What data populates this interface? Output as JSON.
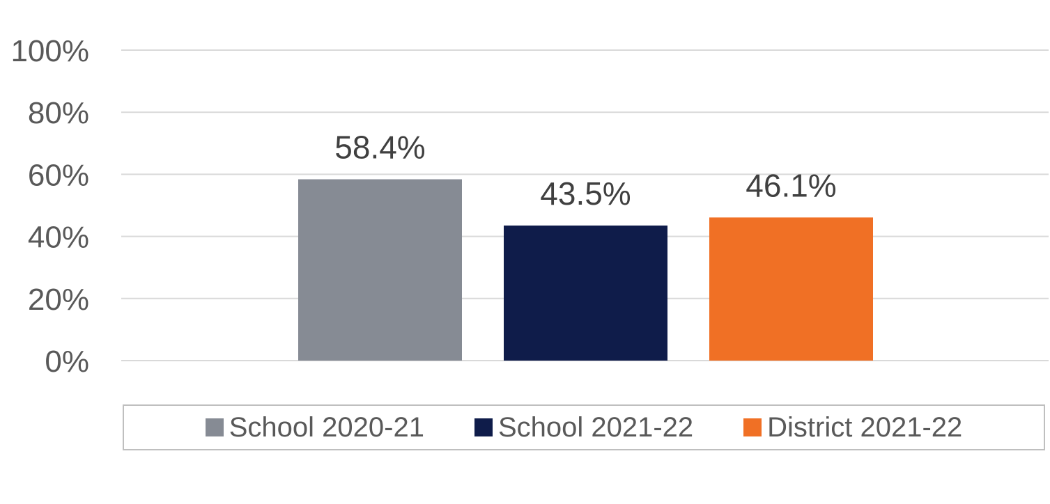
{
  "chart_data": {
    "type": "bar",
    "categories": [
      ""
    ],
    "series": [
      {
        "name": "School 2020-21",
        "values": [
          58.4
        ],
        "color": "#868b94",
        "label": "58.4%"
      },
      {
        "name": "School 2021-22",
        "values": [
          43.5
        ],
        "color": "#0f1c4a",
        "label": "43.5%"
      },
      {
        "name": "District 2021-22",
        "values": [
          46.1
        ],
        "color": "#f07025",
        "label": "46.1%"
      }
    ],
    "title": "",
    "xlabel": "",
    "ylabel": "",
    "ylim": [
      0,
      100
    ],
    "yticks": [
      0,
      20,
      40,
      60,
      80,
      100
    ],
    "ytick_labels": [
      "0%",
      "20%",
      "40%",
      "60%",
      "80%",
      "100%"
    ],
    "grid": true,
    "legend_position": "bottom"
  }
}
